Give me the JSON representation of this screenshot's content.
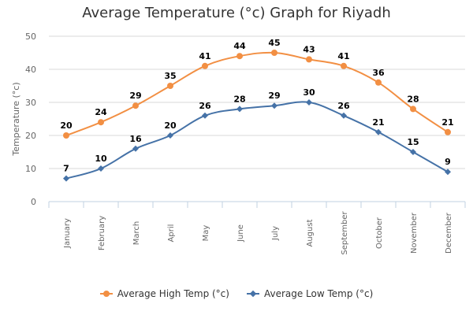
{
  "chart_data": {
    "type": "line",
    "title": "Average Temperature (°c) Graph for Riyadh",
    "ylabel": "Temperature (°c)",
    "xlabel": "",
    "ylim": [
      0,
      50
    ],
    "yticks": [
      0,
      10,
      20,
      30,
      40,
      50
    ],
    "grid": true,
    "legend_position": "bottom",
    "categories": [
      "January",
      "February",
      "March",
      "April",
      "May",
      "June",
      "July",
      "August",
      "September",
      "October",
      "November",
      "December"
    ],
    "series": [
      {
        "name": "Average High Temp (°c)",
        "color": "#f28f43",
        "marker": "circle",
        "values": [
          20,
          24,
          29,
          35,
          41,
          44,
          45,
          43,
          41,
          36,
          28,
          21
        ]
      },
      {
        "name": "Average Low Temp (°c)",
        "color": "#4572a7",
        "marker": "diamond",
        "values": [
          7,
          10,
          16,
          20,
          26,
          28,
          29,
          30,
          26,
          21,
          15,
          9
        ]
      }
    ]
  }
}
